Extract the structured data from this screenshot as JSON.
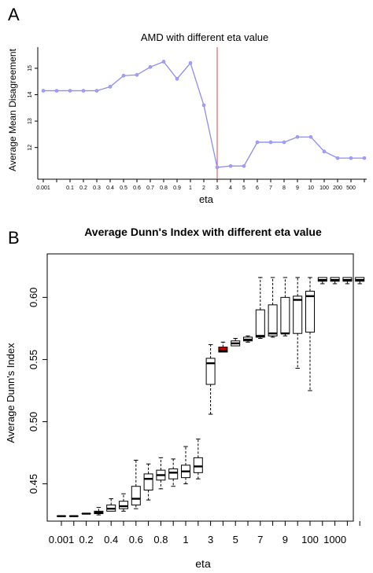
{
  "chart_data": [
    {
      "panel": "A",
      "type": "line",
      "title": "AMD with different eta value",
      "xlabel": "eta",
      "ylabel": "Average Mean Disagreement",
      "ylim": [
        10.8,
        15.8
      ],
      "yticks": [
        "12",
        "13",
        "14",
        "15"
      ],
      "x": [
        "0.001",
        "",
        "0.1",
        "0.2",
        "0.3",
        "0.4",
        "0.5",
        "0.6",
        "0.7",
        "0.8",
        "0.9",
        "1",
        "2",
        "3",
        "4",
        "5",
        "6",
        "7",
        "8",
        "9",
        "10",
        "100",
        "200",
        "500",
        ""
      ],
      "values": [
        14.15,
        14.15,
        14.15,
        14.15,
        14.15,
        14.3,
        14.72,
        14.75,
        15.05,
        15.25,
        14.6,
        15.2,
        13.6,
        11.25,
        11.3,
        11.3,
        12.2,
        12.2,
        12.2,
        12.4,
        12.4,
        11.85,
        11.6,
        11.6,
        11.6
      ],
      "line_color": "#8c8cf2",
      "marker_color": "#a0a0ff",
      "vline_at": "3",
      "vline_color": "#e06666",
      "grid": false
    },
    {
      "panel": "B",
      "type": "box",
      "title": "Average Dunn's Index with different eta value",
      "xlabel": "eta",
      "ylabel": "Average Dunn's Index",
      "ylim": [
        0.42,
        0.635
      ],
      "yticks": [
        "0.45",
        "0.50",
        "0.55",
        "0.60"
      ],
      "xticks": [
        "0.001",
        "0.2",
        "0.4",
        "0.6",
        "0.8",
        "1",
        "3",
        "5",
        "7",
        "9",
        "100",
        "1000"
      ],
      "highlight_color": "#c00000",
      "grid": false,
      "boxes": [
        {
          "min": 0.424,
          "q1": 0.424,
          "median": 0.424,
          "q3": 0.424,
          "max": 0.424
        },
        {
          "min": 0.424,
          "q1": 0.424,
          "median": 0.424,
          "q3": 0.424,
          "max": 0.424
        },
        {
          "min": 0.426,
          "q1": 0.426,
          "median": 0.426,
          "q3": 0.426,
          "max": 0.426
        },
        {
          "min": 0.425,
          "q1": 0.426,
          "median": 0.427,
          "q3": 0.428,
          "max": 0.431
        },
        {
          "min": 0.428,
          "q1": 0.428,
          "median": 0.43,
          "q3": 0.433,
          "max": 0.438
        },
        {
          "min": 0.428,
          "q1": 0.43,
          "median": 0.432,
          "q3": 0.436,
          "max": 0.442
        },
        {
          "min": 0.43,
          "q1": 0.433,
          "median": 0.438,
          "q3": 0.448,
          "max": 0.469
        },
        {
          "min": 0.437,
          "q1": 0.445,
          "median": 0.454,
          "q3": 0.458,
          "max": 0.466
        },
        {
          "min": 0.446,
          "q1": 0.453,
          "median": 0.457,
          "q3": 0.461,
          "max": 0.471
        },
        {
          "min": 0.448,
          "q1": 0.454,
          "median": 0.459,
          "q3": 0.462,
          "max": 0.47
        },
        {
          "min": 0.45,
          "q1": 0.455,
          "median": 0.46,
          "q3": 0.465,
          "max": 0.48
        },
        {
          "min": 0.454,
          "q1": 0.459,
          "median": 0.464,
          "q3": 0.471,
          "max": 0.486
        },
        {
          "min": 0.506,
          "q1": 0.53,
          "median": 0.547,
          "q3": 0.551,
          "max": 0.562
        },
        {
          "min": 0.556,
          "q1": 0.556,
          "median": 0.557,
          "q3": 0.56,
          "max": 0.564,
          "highlight": true
        },
        {
          "min": 0.561,
          "q1": 0.561,
          "median": 0.563,
          "q3": 0.565,
          "max": 0.567
        },
        {
          "min": 0.564,
          "q1": 0.565,
          "median": 0.566,
          "q3": 0.568,
          "max": 0.569
        },
        {
          "min": 0.567,
          "q1": 0.568,
          "median": 0.569,
          "q3": 0.59,
          "max": 0.616
        },
        {
          "min": 0.568,
          "q1": 0.569,
          "median": 0.571,
          "q3": 0.594,
          "max": 0.616
        },
        {
          "min": 0.569,
          "q1": 0.571,
          "median": 0.571,
          "q3": 0.6,
          "max": 0.616
        },
        {
          "min": 0.543,
          "q1": 0.571,
          "median": 0.598,
          "q3": 0.601,
          "max": 0.616
        },
        {
          "min": 0.525,
          "q1": 0.572,
          "median": 0.601,
          "q3": 0.605,
          "max": 0.616
        },
        {
          "min": 0.611,
          "q1": 0.613,
          "median": 0.614,
          "q3": 0.616,
          "max": 0.616
        },
        {
          "min": 0.611,
          "q1": 0.613,
          "median": 0.614,
          "q3": 0.616,
          "max": 0.616
        },
        {
          "min": 0.611,
          "q1": 0.613,
          "median": 0.614,
          "q3": 0.616,
          "max": 0.616
        },
        {
          "min": 0.611,
          "q1": 0.613,
          "median": 0.614,
          "q3": 0.616,
          "max": 0.616
        }
      ]
    }
  ]
}
